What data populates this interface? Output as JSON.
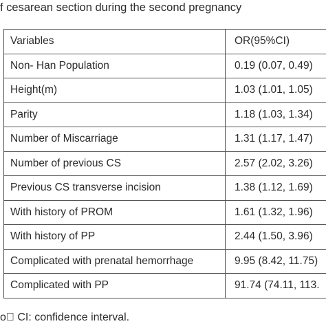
{
  "caption": "f cesarean section during the second pregnancy",
  "table": {
    "headers": [
      "Variables",
      "OR(95%CI)"
    ],
    "rows": [
      [
        "Non- Han Population",
        "0.19 (0.07, 0.49)"
      ],
      [
        "Height(m)",
        "1.03 (1.01, 1.05)"
      ],
      [
        "Parity",
        "1.18 (1.03, 1.34)"
      ],
      [
        "Number of Miscarriage",
        "1.31 (1.17, 1.47)"
      ],
      [
        "Number of previous CS",
        "2.57 (2.02, 3.26)"
      ],
      [
        "Previous CS transverse incision",
        "1.38 (1.12, 1.69)"
      ],
      [
        "With history of PROM",
        "1.61 (1.32, 1.96)"
      ],
      [
        "With history of PP",
        "2.44 (1.50, 3.96)"
      ],
      [
        "Complicated with prenatal hemorrhage",
        "9.95 (8.42, 11.75)"
      ],
      [
        "Complicated with PP",
        "91.74 (74.11, 113."
      ]
    ]
  },
  "footnote": "o\u0000 CI: confidence interval."
}
